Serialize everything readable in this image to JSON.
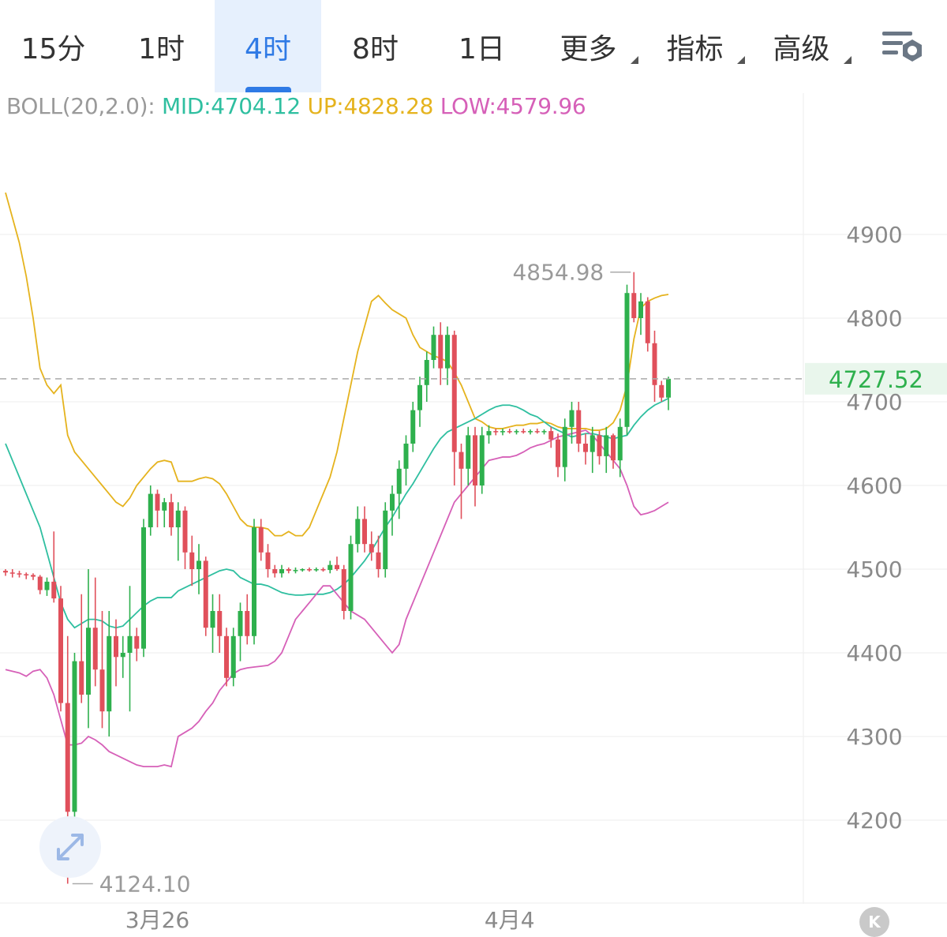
{
  "tabs": [
    {
      "label": "15分",
      "active": false,
      "dropdown": false
    },
    {
      "label": "1时",
      "active": false,
      "dropdown": false
    },
    {
      "label": "4时",
      "active": true,
      "dropdown": false
    },
    {
      "label": "8时",
      "active": false,
      "dropdown": false
    },
    {
      "label": "1日",
      "active": false,
      "dropdown": false
    },
    {
      "label": "更多",
      "active": false,
      "dropdown": true
    },
    {
      "label": "指标",
      "active": false,
      "dropdown": true
    },
    {
      "label": "高级",
      "active": false,
      "dropdown": true
    }
  ],
  "icons": {
    "settings": "chart-settings-icon",
    "collapse": "expand-arrows-icon",
    "k": "k-line-icon"
  },
  "k_label": "K",
  "indicator": {
    "name": "BOLL(20,2.0):",
    "mid_label": "MID:",
    "mid_value": "4704.12",
    "up_label": "UP:",
    "up_value": "4828.28",
    "low_label": "LOW:",
    "low_value": "4579.96"
  },
  "colors": {
    "up": "#2eb04d",
    "down": "#e0505b",
    "mid": "#2fbfa0",
    "upper": "#e5b31e",
    "lower": "#d660b8",
    "label_gray": "#9a9a9a",
    "grid": "#eeeeee",
    "tab_active": "#2f7ae5"
  },
  "chart_data": {
    "type": "candlestick",
    "ylim": [
      4110,
      4950
    ],
    "y_ticks": [
      4200,
      4300,
      4400,
      4500,
      4600,
      4700,
      4800,
      4900
    ],
    "x_labels": [
      {
        "label": "3月26",
        "index": 22
      },
      {
        "label": "4月4",
        "index": 73
      }
    ],
    "current_price": "4727.52",
    "high_label": "4854.98",
    "low_label": "4124.10",
    "candles": [
      [
        4498,
        4500,
        4492,
        4496
      ],
      [
        4496,
        4500,
        4490,
        4495
      ],
      [
        4495,
        4498,
        4490,
        4494
      ],
      [
        4494,
        4496,
        4488,
        4493
      ],
      [
        4493,
        4495,
        4487,
        4491
      ],
      [
        4491,
        4493,
        4470,
        4475
      ],
      [
        4475,
        4490,
        4468,
        4485
      ],
      [
        4485,
        4545,
        4460,
        4465
      ],
      [
        4465,
        4480,
        4330,
        4340
      ],
      [
        4340,
        4420,
        4124,
        4210
      ],
      [
        4210,
        4400,
        4200,
        4390
      ],
      [
        4390,
        4470,
        4340,
        4350
      ],
      [
        4350,
        4500,
        4310,
        4430
      ],
      [
        4430,
        4490,
        4360,
        4380
      ],
      [
        4380,
        4450,
        4310,
        4330
      ],
      [
        4330,
        4450,
        4300,
        4420
      ],
      [
        4420,
        4440,
        4360,
        4395
      ],
      [
        4395,
        4420,
        4370,
        4400
      ],
      [
        4400,
        4480,
        4330,
        4420
      ],
      [
        4420,
        4430,
        4390,
        4405
      ],
      [
        4405,
        4560,
        4395,
        4550
      ],
      [
        4550,
        4600,
        4540,
        4590
      ],
      [
        4590,
        4595,
        4550,
        4570
      ],
      [
        4570,
        4585,
        4550,
        4580
      ],
      [
        4580,
        4590,
        4540,
        4550
      ],
      [
        4550,
        4580,
        4510,
        4570
      ],
      [
        4570,
        4575,
        4500,
        4520
      ],
      [
        4520,
        4540,
        4480,
        4500
      ],
      [
        4500,
        4530,
        4470,
        4510
      ],
      [
        4510,
        4515,
        4420,
        4430
      ],
      [
        4430,
        4470,
        4400,
        4450
      ],
      [
        4450,
        4470,
        4400,
        4420
      ],
      [
        4420,
        4430,
        4360,
        4370
      ],
      [
        4370,
        4430,
        4360,
        4420
      ],
      [
        4420,
        4460,
        4390,
        4450
      ],
      [
        4450,
        4470,
        4410,
        4420
      ],
      [
        4420,
        4560,
        4410,
        4550
      ],
      [
        4550,
        4560,
        4510,
        4520
      ],
      [
        4520,
        4530,
        4490,
        4500
      ],
      [
        4500,
        4505,
        4490,
        4495
      ],
      [
        4495,
        4505,
        4490,
        4500
      ],
      [
        4500,
        4502,
        4495,
        4498
      ],
      [
        4498,
        4502,
        4495,
        4499
      ],
      [
        4499,
        4501,
        4497,
        4500
      ],
      [
        4500,
        4502,
        4497,
        4499
      ],
      [
        4499,
        4502,
        4497,
        4500
      ],
      [
        4500,
        4502,
        4497,
        4499
      ],
      [
        4499,
        4510,
        4495,
        4505
      ],
      [
        4505,
        4515,
        4498,
        4500
      ],
      [
        4500,
        4505,
        4440,
        4450
      ],
      [
        4450,
        4540,
        4440,
        4530
      ],
      [
        4530,
        4575,
        4520,
        4560
      ],
      [
        4560,
        4575,
        4520,
        4530
      ],
      [
        4530,
        4545,
        4510,
        4520
      ],
      [
        4520,
        4540,
        4490,
        4500
      ],
      [
        4500,
        4580,
        4490,
        4570
      ],
      [
        4570,
        4600,
        4540,
        4590
      ],
      [
        4590,
        4630,
        4560,
        4620
      ],
      [
        4620,
        4660,
        4600,
        4650
      ],
      [
        4650,
        4700,
        4640,
        4690
      ],
      [
        4690,
        4730,
        4670,
        4720
      ],
      [
        4720,
        4760,
        4700,
        4750
      ],
      [
        4750,
        4790,
        4740,
        4780
      ],
      [
        4780,
        4795,
        4720,
        4740
      ],
      [
        4740,
        4790,
        4720,
        4780
      ],
      [
        4780,
        4785,
        4600,
        4640
      ],
      [
        4640,
        4650,
        4560,
        4620
      ],
      [
        4620,
        4670,
        4600,
        4660
      ],
      [
        4660,
        4670,
        4575,
        4600
      ],
      [
        4600,
        4670,
        4590,
        4660
      ],
      [
        4660,
        4672,
        4650,
        4665
      ],
      [
        4665,
        4668,
        4660,
        4664
      ],
      [
        4664,
        4668,
        4660,
        4665
      ],
      [
        4665,
        4668,
        4662,
        4664
      ],
      [
        4664,
        4667,
        4661,
        4665
      ],
      [
        4665,
        4668,
        4662,
        4664
      ],
      [
        4664,
        4667,
        4661,
        4665
      ],
      [
        4665,
        4668,
        4662,
        4664
      ],
      [
        4664,
        4667,
        4661,
        4665
      ],
      [
        4665,
        4670,
        4645,
        4655
      ],
      [
        4655,
        4662,
        4610,
        4622
      ],
      [
        4622,
        4680,
        4605,
        4670
      ],
      [
        4670,
        4700,
        4650,
        4690
      ],
      [
        4690,
        4700,
        4640,
        4650
      ],
      [
        4650,
        4662,
        4625,
        4640
      ],
      [
        4640,
        4670,
        4615,
        4660
      ],
      [
        4660,
        4665,
        4625,
        4635
      ],
      [
        4635,
        4670,
        4615,
        4660
      ],
      [
        4660,
        4662,
        4620,
        4630
      ],
      [
        4630,
        4680,
        4610,
        4670
      ],
      [
        4670,
        4840,
        4660,
        4830
      ],
      [
        4830,
        4855,
        4795,
        4800
      ],
      [
        4800,
        4830,
        4780,
        4820
      ],
      [
        4820,
        4825,
        4760,
        4770
      ],
      [
        4770,
        4785,
        4700,
        4720
      ],
      [
        4720,
        4725,
        4700,
        4705
      ],
      [
        4705,
        4730,
        4690,
        4727.52
      ]
    ],
    "boll_mid": [
      4650,
      4630,
      4610,
      4590,
      4570,
      4550,
      4520,
      4490,
      4460,
      4440,
      4430,
      4435,
      4440,
      4440,
      4438,
      4432,
      4430,
      4432,
      4440,
      4448,
      4456,
      4462,
      4466,
      4466,
      4466,
      4474,
      4478,
      4482,
      4486,
      4490,
      4494,
      4498,
      4500,
      4498,
      4490,
      4486,
      4482,
      4482,
      4480,
      4476,
      4472,
      4470,
      4469,
      4469,
      4470,
      4470,
      4470,
      4472,
      4476,
      4482,
      4490,
      4500,
      4510,
      4522,
      4536,
      4550,
      4562,
      4576,
      4590,
      4602,
      4616,
      4630,
      4644,
      4656,
      4664,
      4668,
      4672,
      4676,
      4680,
      4685,
      4690,
      4694,
      4696,
      4696,
      4694,
      4690,
      4685,
      4682,
      4676,
      4670,
      4666,
      4662,
      4658,
      4660,
      4662,
      4662,
      4660,
      4658,
      4656,
      4658,
      4660,
      4672,
      4682,
      4690,
      4696,
      4700,
      4704.12
    ],
    "boll_upper": [
      4950,
      4920,
      4890,
      4850,
      4800,
      4740,
      4720,
      4710,
      4720,
      4660,
      4640,
      4630,
      4620,
      4610,
      4600,
      4590,
      4580,
      4575,
      4585,
      4600,
      4610,
      4620,
      4628,
      4630,
      4628,
      4605,
      4605,
      4605,
      4608,
      4610,
      4608,
      4602,
      4590,
      4575,
      4560,
      4552,
      4550,
      4550,
      4548,
      4540,
      4540,
      4545,
      4540,
      4540,
      4550,
      4570,
      4590,
      4610,
      4640,
      4680,
      4720,
      4760,
      4790,
      4820,
      4827,
      4818,
      4810,
      4805,
      4800,
      4780,
      4765,
      4760,
      4755,
      4752,
      4748,
      4735,
      4720,
      4700,
      4680,
      4676,
      4670,
      4668,
      4668,
      4670,
      4672,
      4672,
      4674,
      4674,
      4676,
      4674,
      4670,
      4668,
      4668,
      4668,
      4668,
      4666,
      4666,
      4668,
      4675,
      4690,
      4720,
      4775,
      4812,
      4820,
      4824,
      4827,
      4828.28
    ],
    "boll_lower": [
      4380,
      4378,
      4376,
      4372,
      4378,
      4380,
      4370,
      4350,
      4320,
      4290,
      4290,
      4292,
      4300,
      4296,
      4290,
      4282,
      4278,
      4274,
      4270,
      4266,
      4264,
      4264,
      4264,
      4266,
      4264,
      4300,
      4305,
      4310,
      4318,
      4330,
      4340,
      4355,
      4365,
      4375,
      4380,
      4382,
      4383,
      4384,
      4385,
      4390,
      4400,
      4420,
      4440,
      4450,
      4460,
      4470,
      4480,
      4480,
      4470,
      4460,
      4450,
      4445,
      4440,
      4430,
      4420,
      4410,
      4400,
      4410,
      4440,
      4460,
      4480,
      4500,
      4520,
      4540,
      4560,
      4580,
      4590,
      4600,
      4610,
      4620,
      4630,
      4632,
      4634,
      4634,
      4636,
      4640,
      4645,
      4648,
      4650,
      4654,
      4658,
      4660,
      4662,
      4664,
      4666,
      4660,
      4650,
      4640,
      4630,
      4620,
      4600,
      4575,
      4565,
      4567,
      4570,
      4575,
      4579.96
    ]
  }
}
